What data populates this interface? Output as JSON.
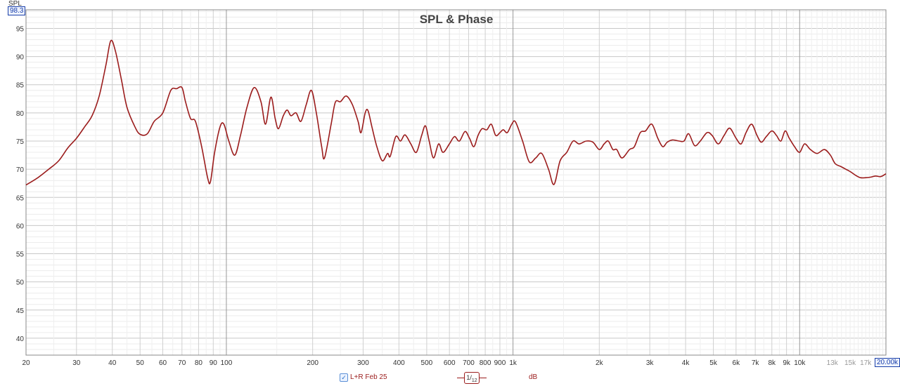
{
  "chart_data": {
    "type": "line",
    "title": "SPL & Phase",
    "ylabel": "SPL",
    "ymax_readout": "98.3",
    "xmax_readout": "20.00k",
    "x_scale": "log",
    "xlim": [
      20,
      20000
    ],
    "ylim": [
      37,
      98.3
    ],
    "grid": true,
    "y_ticks": [
      40,
      45,
      50,
      55,
      60,
      65,
      70,
      75,
      80,
      85,
      90,
      95
    ],
    "x_ticks": [
      {
        "v": 20,
        "label": "20"
      },
      {
        "v": 30,
        "label": "30"
      },
      {
        "v": 40,
        "label": "40"
      },
      {
        "v": 50,
        "label": "50"
      },
      {
        "v": 60,
        "label": "60"
      },
      {
        "v": 70,
        "label": "70"
      },
      {
        "v": 80,
        "label": "80"
      },
      {
        "v": 90,
        "label": "90"
      },
      {
        "v": 100,
        "label": "100"
      },
      {
        "v": 200,
        "label": "200"
      },
      {
        "v": 300,
        "label": "300"
      },
      {
        "v": 400,
        "label": "400"
      },
      {
        "v": 500,
        "label": "500"
      },
      {
        "v": 600,
        "label": "600"
      },
      {
        "v": 700,
        "label": "700"
      },
      {
        "v": 800,
        "label": "800"
      },
      {
        "v": 900,
        "label": "900"
      },
      {
        "v": 1000,
        "label": "1k"
      },
      {
        "v": 2000,
        "label": "2k"
      },
      {
        "v": 3000,
        "label": "3k"
      },
      {
        "v": 4000,
        "label": "4k"
      },
      {
        "v": 5000,
        "label": "5k"
      },
      {
        "v": 6000,
        "label": "6k"
      },
      {
        "v": 7000,
        "label": "7k"
      },
      {
        "v": 8000,
        "label": "8k"
      },
      {
        "v": 9000,
        "label": "9k"
      },
      {
        "v": 10000,
        "label": "10k"
      },
      {
        "v": 13000,
        "label": "13k",
        "faded": true
      },
      {
        "v": 15000,
        "label": "15k",
        "faded": true
      },
      {
        "v": 17000,
        "label": "17k",
        "faded": true
      }
    ],
    "series": [
      {
        "name": "L+R Feb 25",
        "color": "#9b1c1c",
        "points": [
          [
            20,
            67.2
          ],
          [
            22,
            68.5
          ],
          [
            24,
            70.0
          ],
          [
            26,
            71.5
          ],
          [
            28,
            73.8
          ],
          [
            30,
            75.5
          ],
          [
            32,
            77.5
          ],
          [
            34,
            79.5
          ],
          [
            36,
            83.0
          ],
          [
            38,
            88.5
          ],
          [
            39.5,
            92.8
          ],
          [
            41,
            91.0
          ],
          [
            43,
            86.0
          ],
          [
            45,
            81.0
          ],
          [
            48,
            77.5
          ],
          [
            50,
            76.2
          ],
          [
            53,
            76.3
          ],
          [
            56,
            78.5
          ],
          [
            60,
            80.0
          ],
          [
            64,
            84.0
          ],
          [
            67,
            84.3
          ],
          [
            70,
            84.5
          ],
          [
            72,
            82.0
          ],
          [
            75,
            79.0
          ],
          [
            78,
            78.5
          ],
          [
            82,
            74.0
          ],
          [
            86,
            68.5
          ],
          [
            88,
            67.8
          ],
          [
            91,
            73.0
          ],
          [
            95,
            77.5
          ],
          [
            98,
            78.0
          ],
          [
            102,
            75.0
          ],
          [
            107,
            72.5
          ],
          [
            112,
            76.0
          ],
          [
            118,
            81.0
          ],
          [
            125,
            84.5
          ],
          [
            132,
            82.0
          ],
          [
            137,
            78.0
          ],
          [
            143,
            82.8
          ],
          [
            148,
            79.0
          ],
          [
            152,
            77.2
          ],
          [
            158,
            79.5
          ],
          [
            163,
            80.5
          ],
          [
            168,
            79.5
          ],
          [
            175,
            80.0
          ],
          [
            182,
            78.5
          ],
          [
            190,
            81.5
          ],
          [
            198,
            84.0
          ],
          [
            206,
            80.0
          ],
          [
            215,
            74.0
          ],
          [
            220,
            72.0
          ],
          [
            232,
            78.0
          ],
          [
            240,
            81.9
          ],
          [
            250,
            82.0
          ],
          [
            262,
            83.0
          ],
          [
            275,
            81.5
          ],
          [
            288,
            78.5
          ],
          [
            295,
            76.5
          ],
          [
            305,
            80.0
          ],
          [
            312,
            80.4
          ],
          [
            322,
            77.5
          ],
          [
            335,
            74.0
          ],
          [
            350,
            71.5
          ],
          [
            365,
            72.8
          ],
          [
            373,
            72.3
          ],
          [
            390,
            75.8
          ],
          [
            405,
            75.0
          ],
          [
            420,
            76.1
          ],
          [
            440,
            74.5
          ],
          [
            460,
            73.0
          ],
          [
            480,
            76.0
          ],
          [
            495,
            77.7
          ],
          [
            510,
            75.0
          ],
          [
            528,
            72.0
          ],
          [
            550,
            74.5
          ],
          [
            570,
            73.0
          ],
          [
            600,
            74.5
          ],
          [
            625,
            75.8
          ],
          [
            650,
            75.0
          ],
          [
            680,
            76.7
          ],
          [
            705,
            75.5
          ],
          [
            730,
            74.0
          ],
          [
            755,
            76.0
          ],
          [
            780,
            77.2
          ],
          [
            810,
            77.0
          ],
          [
            840,
            78.0
          ],
          [
            870,
            76.0
          ],
          [
            900,
            76.5
          ],
          [
            925,
            77.0
          ],
          [
            955,
            76.5
          ],
          [
            990,
            78.0
          ],
          [
            1020,
            78.4
          ],
          [
            1080,
            75.0
          ],
          [
            1140,
            71.3
          ],
          [
            1200,
            72.0
          ],
          [
            1260,
            72.8
          ],
          [
            1330,
            70.0
          ],
          [
            1390,
            67.3
          ],
          [
            1460,
            71.5
          ],
          [
            1540,
            73.0
          ],
          [
            1620,
            75.0
          ],
          [
            1700,
            74.5
          ],
          [
            1800,
            75.0
          ],
          [
            1900,
            74.8
          ],
          [
            2000,
            73.5
          ],
          [
            2080,
            74.5
          ],
          [
            2150,
            75.0
          ],
          [
            2230,
            73.5
          ],
          [
            2300,
            73.5
          ],
          [
            2400,
            72.0
          ],
          [
            2550,
            73.5
          ],
          [
            2650,
            74.0
          ],
          [
            2780,
            76.5
          ],
          [
            2900,
            76.8
          ],
          [
            3050,
            78.0
          ],
          [
            3200,
            75.5
          ],
          [
            3330,
            74.0
          ],
          [
            3450,
            74.8
          ],
          [
            3600,
            75.2
          ],
          [
            3800,
            75.0
          ],
          [
            3950,
            75.0
          ],
          [
            4100,
            76.3
          ],
          [
            4300,
            74.2
          ],
          [
            4500,
            75.0
          ],
          [
            4750,
            76.5
          ],
          [
            4950,
            76.0
          ],
          [
            5200,
            74.5
          ],
          [
            5450,
            76.0
          ],
          [
            5700,
            77.3
          ],
          [
            6000,
            75.5
          ],
          [
            6250,
            74.5
          ],
          [
            6500,
            76.5
          ],
          [
            6800,
            78.0
          ],
          [
            7100,
            76.0
          ],
          [
            7350,
            74.8
          ],
          [
            7650,
            75.8
          ],
          [
            8000,
            76.8
          ],
          [
            8300,
            76.0
          ],
          [
            8600,
            75.0
          ],
          [
            8900,
            76.8
          ],
          [
            9200,
            75.5
          ],
          [
            9600,
            74.0
          ],
          [
            10000,
            73.0
          ],
          [
            10400,
            74.5
          ],
          [
            10900,
            73.5
          ],
          [
            11500,
            72.8
          ],
          [
            12200,
            73.5
          ],
          [
            12800,
            72.5
          ],
          [
            13300,
            71.0
          ],
          [
            13900,
            70.5
          ],
          [
            14500,
            70.0
          ],
          [
            15100,
            69.5
          ],
          [
            15700,
            68.9
          ],
          [
            16300,
            68.5
          ],
          [
            17000,
            68.5
          ],
          [
            17700,
            68.6
          ],
          [
            18400,
            68.8
          ],
          [
            19200,
            68.7
          ],
          [
            20000,
            69.2
          ]
        ]
      }
    ],
    "legend": {
      "series_label": "L+R Feb 25",
      "smoothing_num": "1",
      "smoothing_den": "12",
      "unit": "dB"
    }
  }
}
